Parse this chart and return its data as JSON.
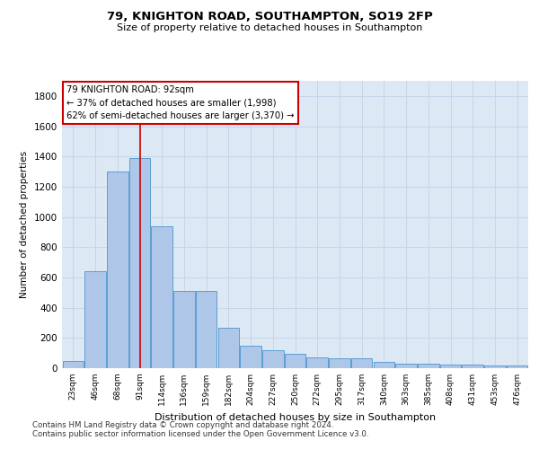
{
  "title": "79, KNIGHTON ROAD, SOUTHAMPTON, SO19 2FP",
  "subtitle": "Size of property relative to detached houses in Southampton",
  "xlabel": "Distribution of detached houses by size in Southampton",
  "ylabel": "Number of detached properties",
  "categories": [
    "23sqm",
    "46sqm",
    "68sqm",
    "91sqm",
    "114sqm",
    "136sqm",
    "159sqm",
    "182sqm",
    "204sqm",
    "227sqm",
    "250sqm",
    "272sqm",
    "295sqm",
    "317sqm",
    "340sqm",
    "363sqm",
    "385sqm",
    "408sqm",
    "431sqm",
    "453sqm",
    "476sqm"
  ],
  "values": [
    50,
    640,
    1300,
    1390,
    940,
    510,
    510,
    270,
    150,
    120,
    95,
    70,
    65,
    65,
    40,
    30,
    30,
    25,
    25,
    20,
    20
  ],
  "bar_color": "#aec6e8",
  "bar_edge_color": "#5a9fd4",
  "grid_color": "#c8d4e8",
  "background_color": "#dde8f5",
  "vline_x": 3,
  "vline_color": "#cc0000",
  "annotation_text": "79 KNIGHTON ROAD: 92sqm\n← 37% of detached houses are smaller (1,998)\n62% of semi-detached houses are larger (3,370) →",
  "annotation_box_color": "#cc0000",
  "ylim": [
    0,
    1900
  ],
  "yticks": [
    0,
    200,
    400,
    600,
    800,
    1000,
    1200,
    1400,
    1600,
    1800
  ],
  "footer_line1": "Contains HM Land Registry data © Crown copyright and database right 2024.",
  "footer_line2": "Contains public sector information licensed under the Open Government Licence v3.0."
}
